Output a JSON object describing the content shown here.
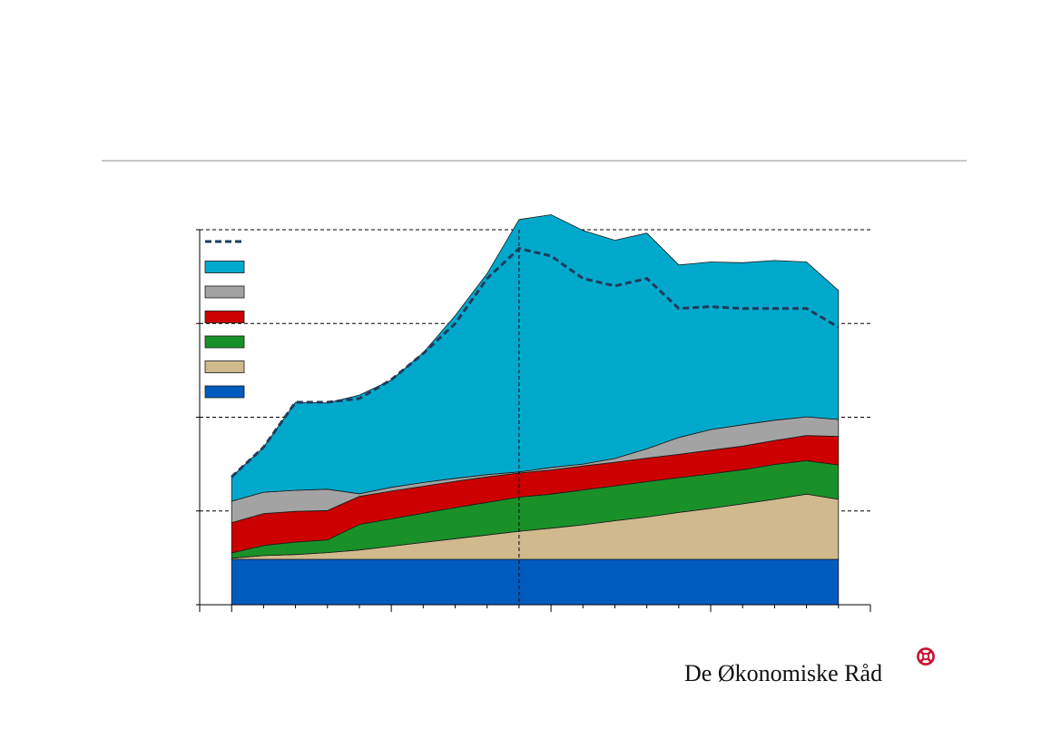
{
  "brand": {
    "name": "De Økonomiske Råd",
    "mark_color": "#c8102e"
  },
  "chart_data": {
    "type": "area",
    "stacked": true,
    "x": [
      0,
      1,
      2,
      3,
      4,
      5,
      6,
      7,
      8,
      9,
      10,
      11,
      12,
      13,
      14,
      15,
      16,
      17,
      18,
      19
    ],
    "ylim": [
      0,
      100
    ],
    "xlim": [
      -1,
      20
    ],
    "grid": true,
    "legend_position": "top-left",
    "colors": {
      "total_line": "#1f3b5c",
      "blue": "#005bbf",
      "tan": "#cfb98d",
      "green": "#1a9128",
      "red": "#cc0000",
      "gray": "#a3a3a3",
      "cyan": "#00a9cc"
    },
    "series": [
      {
        "values": [
          12.1,
          12.1,
          12.1,
          12.1,
          12.1,
          12.1,
          12.1,
          12.1,
          12.1,
          12.1,
          12.1,
          12.1,
          12.1,
          12.1,
          12.1,
          12.1,
          12.1,
          12.1,
          12.1,
          12.1
        ]
      },
      {
        "values": [
          0.3,
          1.0,
          1.3,
          1.8,
          2.5,
          3.5,
          4.5,
          5.5,
          6.5,
          7.5,
          8.3,
          9.2,
          10.3,
          11.3,
          12.5,
          13.6,
          14.8,
          16.0,
          17.4,
          16.0
        ]
      },
      {
        "values": [
          1.4,
          2.7,
          3.3,
          3.4,
          6.8,
          7.3,
          7.8,
          8.3,
          8.7,
          9.1,
          9.1,
          9.3,
          9.3,
          9.4,
          9.3,
          9.2,
          9.1,
          9.3,
          8.9,
          9.2
        ]
      },
      {
        "values": [
          8.1,
          8.5,
          8.2,
          7.8,
          7.5,
          7.4,
          7.2,
          7.0,
          6.8,
          6.4,
          6.4,
          6.4,
          6.3,
          6.3,
          6.2,
          6.3,
          6.3,
          6.4,
          6.7,
          7.6
        ]
      },
      {
        "values": [
          5.7,
          5.7,
          5.6,
          5.7,
          0.7,
          1.0,
          1.0,
          0.8,
          0.6,
          0.3,
          0.7,
          0.5,
          1.0,
          2.5,
          4.5,
          5.5,
          5.7,
          5.4,
          5.0,
          4.5
        ]
      },
      {
        "values": [
          6.5,
          12.0,
          23.5,
          23.0,
          26.3,
          28.6,
          34.6,
          43.4,
          53.6,
          67.3,
          67.4,
          62.3,
          58.2,
          57.5,
          46.0,
          44.7,
          43.2,
          42.6,
          41.3,
          34.4
        ]
      }
    ],
    "total": [
      34.1,
      42.0,
      54.0,
      54.0,
      55.0,
      60.0,
      67.0,
      75.0,
      87.0,
      95.0,
      93.0,
      87.0,
      85.0,
      87.0,
      79.0,
      79.5,
      79.0,
      79.0,
      79.0,
      74.0
    ],
    "legend": [
      {
        "kind": "dashed-line",
        "color": "#1f3b5c"
      },
      {
        "kind": "swatch",
        "color": "#00a9cc"
      },
      {
        "kind": "swatch",
        "color": "#a3a3a3"
      },
      {
        "kind": "swatch",
        "color": "#cc0000"
      },
      {
        "kind": "swatch",
        "color": "#1a9128"
      },
      {
        "kind": "swatch",
        "color": "#cfb98d"
      },
      {
        "kind": "swatch",
        "color": "#005bbf"
      }
    ],
    "major_ticks_every": 5,
    "vertical_divider_at": 9
  }
}
